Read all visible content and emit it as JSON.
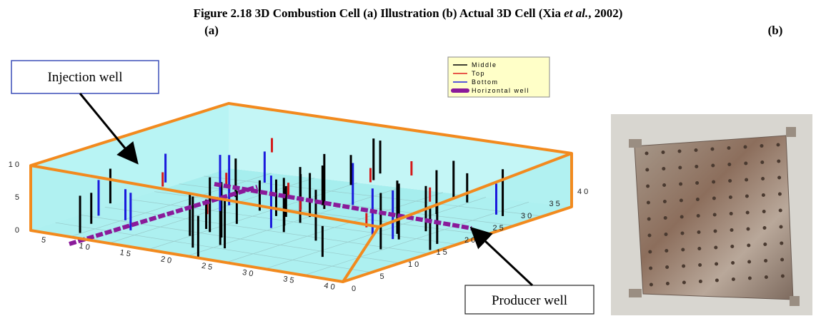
{
  "figure": {
    "title_parts": [
      "Figure 2.18 3D Combustion Cell (a) Illustration (b) Actual 3D Cell (Xia ",
      "et al.",
      ", 2002)"
    ],
    "panel_a_label": "(a)",
    "panel_b_label": "(b)",
    "callouts": [
      "Injection well",
      "Producer well"
    ],
    "legend": [
      "Middle",
      "Top",
      "Bottom",
      "Horizontal well"
    ],
    "z_ticks": [
      10,
      5,
      0
    ],
    "x_ticks": [
      5,
      10,
      15,
      20,
      25,
      30,
      35,
      40
    ],
    "y_ticks": [
      0,
      5,
      10,
      15,
      20,
      25,
      30,
      35,
      40
    ]
  }
}
